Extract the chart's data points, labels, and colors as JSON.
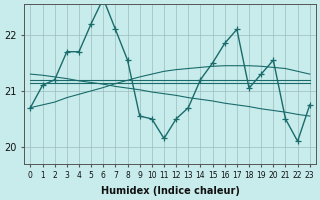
{
  "xlabel": "Humidex (Indice chaleur)",
  "bg_color": "#c8ecec",
  "line_color": "#1a6b6b",
  "xlim": [
    -0.5,
    23.5
  ],
  "ylim": [
    19.7,
    22.55
  ],
  "yticks": [
    20,
    21,
    22
  ],
  "xticks": [
    0,
    1,
    2,
    3,
    4,
    5,
    6,
    7,
    8,
    9,
    10,
    11,
    12,
    13,
    14,
    15,
    16,
    17,
    18,
    19,
    20,
    21,
    22,
    23
  ],
  "series_with_markers": [
    [
      20.7,
      21.1,
      21.2,
      21.7,
      21.7,
      22.2,
      22.65,
      22.1,
      21.55,
      20.55,
      20.5,
      20.15,
      20.5,
      20.7,
      21.2,
      21.5,
      21.85,
      22.1,
      21.05,
      21.3,
      21.55,
      20.5,
      20.1,
      20.75
    ]
  ],
  "series_no_markers": [
    [
      21.2,
      21.2,
      21.2,
      21.2,
      21.2,
      21.2,
      21.2,
      21.2,
      21.2,
      21.2,
      21.2,
      21.2,
      21.2,
      21.2,
      21.2,
      21.2,
      21.2,
      21.2,
      21.2,
      21.2,
      21.2,
      21.2,
      21.2,
      21.2
    ],
    [
      21.15,
      21.15,
      21.15,
      21.15,
      21.15,
      21.15,
      21.15,
      21.15,
      21.15,
      21.15,
      21.15,
      21.15,
      21.15,
      21.15,
      21.15,
      21.15,
      21.15,
      21.15,
      21.15,
      21.15,
      21.15,
      21.15,
      21.15,
      21.15
    ],
    [
      20.7,
      20.75,
      20.8,
      20.88,
      20.94,
      21.0,
      21.06,
      21.13,
      21.19,
      21.25,
      21.3,
      21.35,
      21.38,
      21.4,
      21.42,
      21.44,
      21.45,
      21.45,
      21.45,
      21.44,
      21.42,
      21.4,
      21.35,
      21.3
    ],
    [
      21.3,
      21.28,
      21.25,
      21.22,
      21.18,
      21.15,
      21.12,
      21.08,
      21.05,
      21.02,
      20.98,
      20.95,
      20.92,
      20.88,
      20.85,
      20.82,
      20.78,
      20.75,
      20.72,
      20.68,
      20.65,
      20.62,
      20.58,
      20.55
    ]
  ]
}
